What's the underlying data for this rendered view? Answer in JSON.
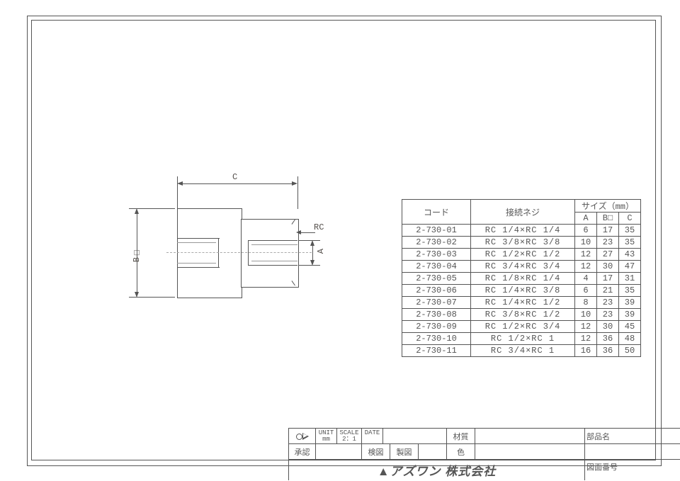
{
  "drawing": {
    "dim_c_label": "C",
    "dim_b_label": "B□",
    "dim_a_label": "A",
    "thread_callout": "RC"
  },
  "spec_table": {
    "headers": {
      "code": "コード",
      "thread": "接続ネジ",
      "size_group": "サイズ（mm）",
      "a": "A",
      "b": "B□",
      "c": "C"
    },
    "rows": [
      {
        "code": "2-730-01",
        "thread": "RC 1/4×RC 1/4",
        "a": "6",
        "b": "17",
        "c": "35"
      },
      {
        "code": "2-730-02",
        "thread": "RC 3/8×RC 3/8",
        "a": "10",
        "b": "23",
        "c": "35"
      },
      {
        "code": "2-730-03",
        "thread": "RC 1/2×RC 1/2",
        "a": "12",
        "b": "27",
        "c": "43"
      },
      {
        "code": "2-730-04",
        "thread": "RC 3/4×RC 3/4",
        "a": "12",
        "b": "30",
        "c": "47"
      },
      {
        "code": "2-730-05",
        "thread": "RC 1/8×RC 1/4",
        "a": "4",
        "b": "17",
        "c": "31"
      },
      {
        "code": "2-730-06",
        "thread": "RC 1/4×RC 3/8",
        "a": "6",
        "b": "21",
        "c": "35"
      },
      {
        "code": "2-730-07",
        "thread": "RC 1/4×RC 1/2",
        "a": "8",
        "b": "23",
        "c": "39"
      },
      {
        "code": "2-730-08",
        "thread": "RC 3/8×RC 1/2",
        "a": "10",
        "b": "23",
        "c": "39"
      },
      {
        "code": "2-730-09",
        "thread": "RC 1/2×RC 3/4",
        "a": "12",
        "b": "30",
        "c": "45"
      },
      {
        "code": "2-730-10",
        "thread": "RC 1/2×RC 1",
        "a": "12",
        "b": "36",
        "c": "48"
      },
      {
        "code": "2-730-11",
        "thread": "RC 3/4×RC 1",
        "a": "16",
        "b": "36",
        "c": "50"
      }
    ]
  },
  "title_block": {
    "unit_label": "UNIT",
    "unit_value": "mm",
    "scale_label": "SCALE",
    "scale_value": "2：1",
    "date_label": "DATE",
    "material_label": "材質",
    "part_name_label": "部品名",
    "approve_label": "承認",
    "check_label": "検図",
    "draw_label": "製図",
    "color_label": "色",
    "drawing_no_label": "図面番号",
    "company": "アズワン 株式会社"
  }
}
